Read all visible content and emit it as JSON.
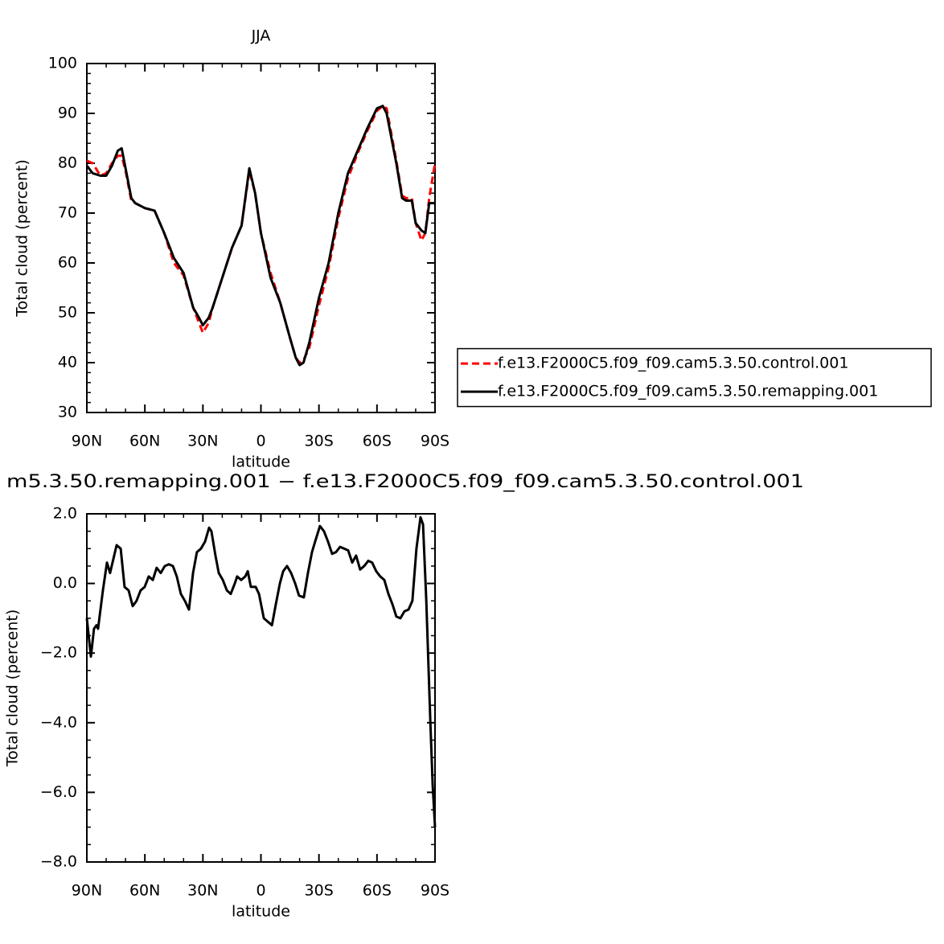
{
  "chart_data": [
    {
      "type": "line",
      "title": "JJA",
      "xlabel": "latitude",
      "ylabel": "Total cloud (percent)",
      "xlim": [
        90,
        -90
      ],
      "ylim": [
        30,
        100
      ],
      "xticks": [
        {
          "value": 90,
          "label": "90N"
        },
        {
          "value": 60,
          "label": "60N"
        },
        {
          "value": 30,
          "label": "30N"
        },
        0,
        {
          "value": -30,
          "label": "30S"
        },
        {
          "value": -60,
          "label": "60S"
        },
        {
          "value": -90,
          "label": "90S"
        }
      ],
      "yticks": [
        30,
        40,
        50,
        60,
        70,
        80,
        90,
        100
      ],
      "legend": "right",
      "x": [
        90,
        87,
        83,
        80,
        77,
        74,
        72,
        70,
        67,
        65,
        60,
        55,
        50,
        45,
        40,
        35,
        32,
        30,
        27,
        25,
        20,
        15,
        10,
        6,
        3,
        0,
        -5,
        -10,
        -15,
        -18,
        -20,
        -22,
        -25,
        -30,
        -35,
        -40,
        -45,
        -50,
        -55,
        -60,
        -63,
        -65,
        -70,
        -73,
        -75,
        -78,
        -80,
        -83,
        -85,
        -87,
        -90
      ],
      "series": [
        {
          "name": "f.e13.F2000C5.f09_f09.cam5.3.50.control.001",
          "color": "#ff0000",
          "style": "dashed",
          "values": [
            80.5,
            80,
            77.5,
            78,
            80,
            81.5,
            81.5,
            78.5,
            72.5,
            72,
            71,
            70.5,
            66,
            60,
            57.5,
            51,
            48,
            46,
            48,
            51,
            57,
            63,
            67.5,
            78.5,
            74,
            66,
            58,
            52,
            45,
            41,
            40,
            40.5,
            43,
            51.5,
            59,
            69,
            77,
            82,
            86.5,
            90.5,
            91.5,
            91,
            80.5,
            73.5,
            73,
            73,
            68,
            64.5,
            66,
            73,
            80
          ]
        },
        {
          "name": "f.e13.F2000C5.f09_f09.cam5.3.50.remapping.001",
          "color": "#000000",
          "style": "solid",
          "values": [
            79.5,
            78,
            77.5,
            77.5,
            79.5,
            82.5,
            83,
            79,
            73,
            72,
            71,
            70.5,
            66,
            61,
            58,
            51,
            49,
            47.5,
            49,
            51,
            57,
            63,
            67.5,
            79,
            74,
            66,
            57,
            52,
            45,
            41,
            39.5,
            40,
            44,
            53,
            60,
            70,
            78,
            82.5,
            87,
            91,
            91.5,
            90,
            80,
            73,
            72.5,
            72.5,
            68,
            66.5,
            66,
            72,
            72
          ]
        }
      ]
    },
    {
      "type": "line",
      "title": "m5.3.50.remapping.001 − f.e13.F2000C5.f09_f09.cam5.3.50.control.001",
      "xlabel": "latitude",
      "ylabel": "Total cloud (percent)",
      "xlim": [
        90,
        -90
      ],
      "ylim": [
        -8,
        2
      ],
      "xticks": [
        {
          "value": 90,
          "label": "90N"
        },
        {
          "value": 60,
          "label": "60N"
        },
        {
          "value": 30,
          "label": "30N"
        },
        0,
        {
          "value": -30,
          "label": "30S"
        },
        {
          "value": -60,
          "label": "60S"
        },
        {
          "value": -90,
          "label": "90S"
        }
      ],
      "yticks": [
        {
          "value": 2,
          "label": "2.0"
        },
        {
          "value": 0,
          "label": "0.0"
        },
        {
          "value": -2,
          "label": "−2.0"
        },
        {
          "value": -4,
          "label": "−4.0"
        },
        {
          "value": -6,
          "label": "−6.0"
        },
        {
          "value": -8,
          "label": "−8.0"
        }
      ],
      "x": [
        90.0,
        87.9,
        86.3,
        85.0,
        84.2,
        81.7,
        79.6,
        78.0,
        74.6,
        72.5,
        70.5,
        68.4,
        66.3,
        64.3,
        62.2,
        60.1,
        58.0,
        55.9,
        53.9,
        51.8,
        49.7,
        47.6,
        45.5,
        43.5,
        41.4,
        39.3,
        37.2,
        35.1,
        33.1,
        31.0,
        28.9,
        26.8,
        25.6,
        23.5,
        21.8,
        19.7,
        17.6,
        15.6,
        13.5,
        12.3,
        10.2,
        8.1,
        6.8,
        5.2,
        2.7,
        1.0,
        -1.5,
        -3.6,
        -5.7,
        -7.7,
        -9.8,
        -11.5,
        -13.5,
        -15.6,
        -17.7,
        -19.7,
        -22.2,
        -24.3,
        -26.4,
        -28.0,
        -30.5,
        -32.6,
        -34.7,
        -36.8,
        -38.8,
        -40.9,
        -43.0,
        -45.1,
        -47.2,
        -49.2,
        -51.3,
        -53.4,
        -55.5,
        -57.5,
        -59.6,
        -61.7,
        -63.8,
        -65.9,
        -68.0,
        -70.0,
        -72.1,
        -74.2,
        -76.3,
        -78.3,
        -80.4,
        -82.5,
        -83.8,
        -85.5,
        -87.6,
        -88.8,
        -90.0
      ],
      "series": [
        {
          "color": "#000000",
          "style": "solid",
          "values": [
            -1.0,
            -2.1,
            -1.3,
            -1.2,
            -1.3,
            -0.2,
            0.6,
            0.3,
            1.1,
            1.0,
            -0.1,
            -0.2,
            -0.65,
            -0.5,
            -0.2,
            -0.1,
            0.2,
            0.1,
            0.45,
            0.3,
            0.5,
            0.55,
            0.5,
            0.2,
            -0.3,
            -0.5,
            -0.75,
            0.3,
            0.9,
            1.0,
            1.2,
            1.6,
            1.5,
            0.8,
            0.3,
            0.1,
            -0.2,
            -0.3,
            0.0,
            0.2,
            0.1,
            0.2,
            0.35,
            -0.1,
            -0.1,
            -0.3,
            -1.0,
            -1.1,
            -1.2,
            -0.6,
            0.0,
            0.35,
            0.5,
            0.3,
            0.0,
            -0.35,
            -0.4,
            0.3,
            0.9,
            1.2,
            1.65,
            1.5,
            1.2,
            0.85,
            0.9,
            1.05,
            1.0,
            0.95,
            0.6,
            0.8,
            0.4,
            0.5,
            0.65,
            0.6,
            0.35,
            0.2,
            0.1,
            -0.3,
            -0.6,
            -0.95,
            -1.0,
            -0.8,
            -0.75,
            -0.5,
            1.0,
            1.9,
            1.7,
            -0.5,
            -4.0,
            -5.8,
            -7.0
          ]
        }
      ]
    }
  ]
}
